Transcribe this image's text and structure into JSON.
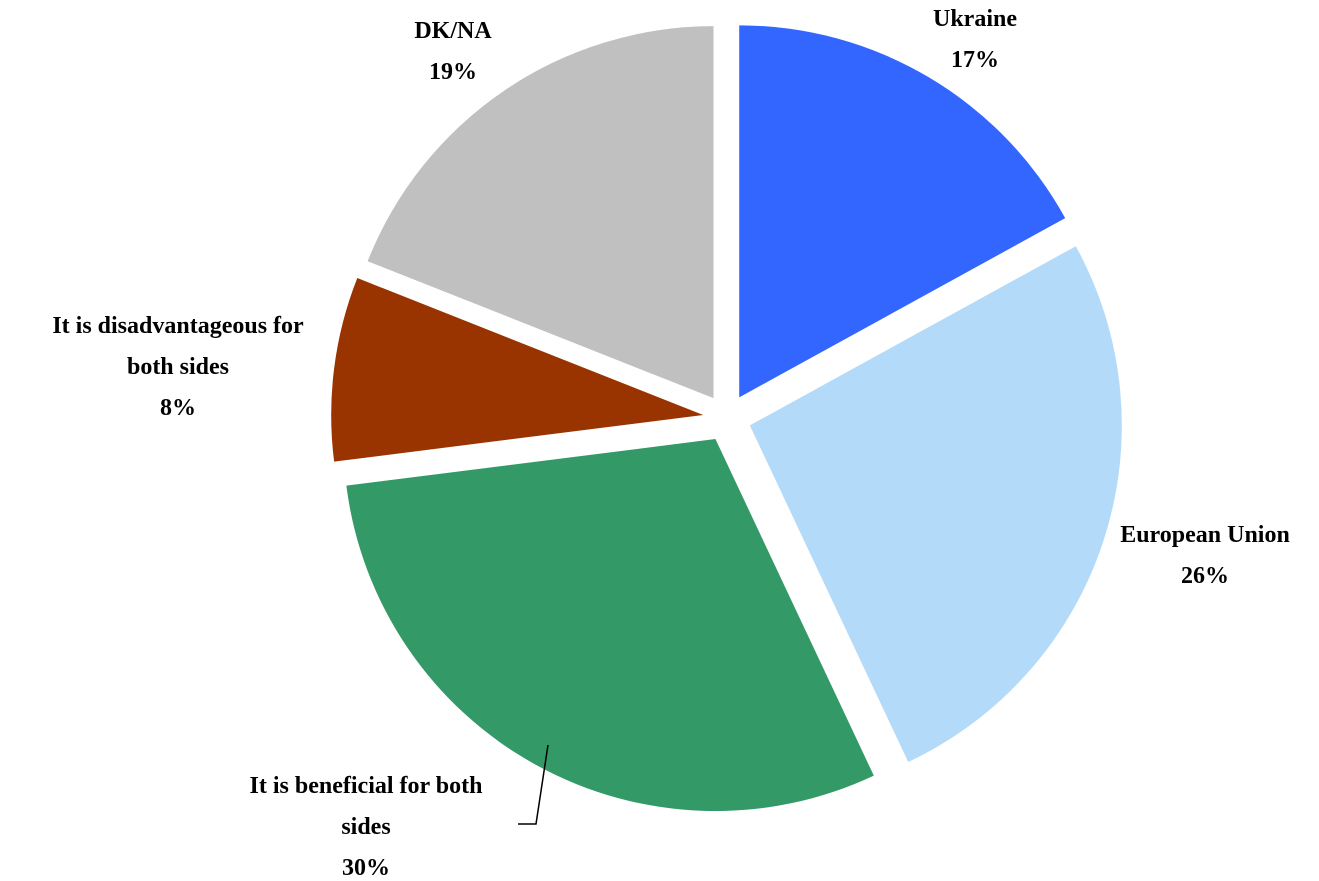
{
  "chart_data": {
    "type": "pie",
    "slices": [
      {
        "label_lines": [
          "Ukraine"
        ],
        "value_label": "17%",
        "value": 17,
        "color": "#3366ff"
      },
      {
        "label_lines": [
          "European Union"
        ],
        "value_label": "26%",
        "value": 26,
        "color": "#b3dbf9"
      },
      {
        "label_lines": [
          "It is beneficial for both",
          "sides"
        ],
        "value_label": "30%",
        "value": 30,
        "color": "#339966"
      },
      {
        "label_lines": [
          "It is disadvantageous for",
          "both sides"
        ],
        "value_label": "8%",
        "value": 8,
        "color": "#993300"
      },
      {
        "label_lines": [
          "DK/NA"
        ],
        "value_label": "19%",
        "value": 19,
        "color": "#c0c0c0"
      }
    ],
    "exploded": true,
    "legend": "none"
  }
}
